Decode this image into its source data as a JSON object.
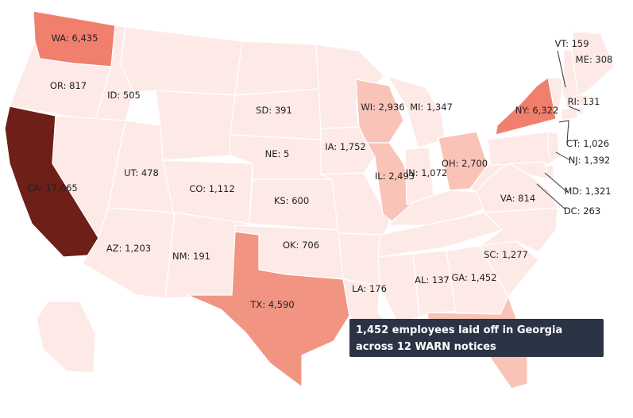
{
  "colors": {
    "scale": [
      "#fdeae7",
      "#f9c3b8",
      "#f29482",
      "#f17f6e",
      "#6e1f17"
    ],
    "border": "#ffffff",
    "tooltip_bg": "#2b3445",
    "tooltip_text": "#ffffff"
  },
  "states": [
    {
      "id": "WA",
      "label": "WA: 6,435"
    },
    {
      "id": "OR",
      "label": "OR: 817"
    },
    {
      "id": "CA",
      "label": "CA: 17,665"
    },
    {
      "id": "ID",
      "label": "ID: 505"
    },
    {
      "id": "NV",
      "label": ""
    },
    {
      "id": "UT",
      "label": "UT: 478"
    },
    {
      "id": "AZ",
      "label": "AZ: 1,203"
    },
    {
      "id": "MT",
      "label": ""
    },
    {
      "id": "WY",
      "label": ""
    },
    {
      "id": "CO",
      "label": "CO: 1,112"
    },
    {
      "id": "NM",
      "label": "NM: 191"
    },
    {
      "id": "ND",
      "label": ""
    },
    {
      "id": "SD",
      "label": "SD: 391"
    },
    {
      "id": "NE",
      "label": "NE: 5"
    },
    {
      "id": "KS",
      "label": "KS: 600"
    },
    {
      "id": "OK",
      "label": "OK: 706"
    },
    {
      "id": "TX",
      "label": "TX: 4,590"
    },
    {
      "id": "MN",
      "label": ""
    },
    {
      "id": "IA",
      "label": "IA: 1,752"
    },
    {
      "id": "MO",
      "label": ""
    },
    {
      "id": "AR",
      "label": ""
    },
    {
      "id": "LA",
      "label": "LA: 176"
    },
    {
      "id": "WI",
      "label": "WI: 2,936"
    },
    {
      "id": "IL",
      "label": "IL: 2,493"
    },
    {
      "id": "MI",
      "label": "MI: 1,347"
    },
    {
      "id": "IN",
      "label": "IN: 1,072"
    },
    {
      "id": "OH",
      "label": "OH: 2,700"
    },
    {
      "id": "KY",
      "label": ""
    },
    {
      "id": "TN",
      "label": ""
    },
    {
      "id": "MS",
      "label": ""
    },
    {
      "id": "AL",
      "label": "AL: 137"
    },
    {
      "id": "GA",
      "label": "GA: 1,452"
    },
    {
      "id": "FL",
      "label": ""
    },
    {
      "id": "SC",
      "label": "SC: 1,277"
    },
    {
      "id": "NC",
      "label": ""
    },
    {
      "id": "VA",
      "label": "VA: 814"
    },
    {
      "id": "WV",
      "label": ""
    },
    {
      "id": "PA",
      "label": ""
    },
    {
      "id": "NY",
      "label": "NY: 6,322"
    },
    {
      "id": "VT",
      "label": "VT: 159"
    },
    {
      "id": "NH",
      "label": ""
    },
    {
      "id": "ME",
      "label": "ME: 308"
    },
    {
      "id": "MA",
      "label": ""
    },
    {
      "id": "RI",
      "label": "RI: 131"
    },
    {
      "id": "CT",
      "label": "CT: 1,026"
    },
    {
      "id": "NJ",
      "label": "NJ: 1,392"
    },
    {
      "id": "DE",
      "label": ""
    },
    {
      "id": "MD",
      "label": "MD: 1,321"
    },
    {
      "id": "DC",
      "label": "DC: 263"
    },
    {
      "id": "AK",
      "label": ""
    }
  ],
  "tooltip": {
    "text": "1,452 employees laid off in Georgia across 12 WARN notices"
  }
}
